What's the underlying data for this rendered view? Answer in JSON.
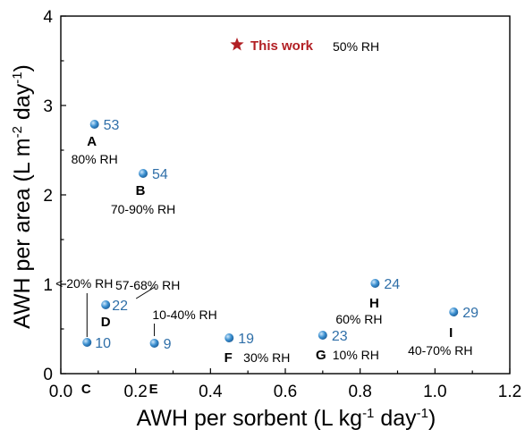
{
  "chart_data": {
    "type": "scatter",
    "xlabel_main": "AWH per sorbent (L kg",
    "xlabel_sup1": "-1",
    "xlabel_mid": " day",
    "xlabel_sup2": "-1",
    "xlabel_end": ")",
    "ylabel_main": "AWH per area (L m",
    "ylabel_sup1": "-2",
    "ylabel_mid": " day",
    "ylabel_sup2": "-1",
    "ylabel_end": ")",
    "xlim": [
      0,
      1.2
    ],
    "ylim": [
      0,
      4
    ],
    "x_ticks": [
      "0.0",
      "0.2",
      "0.4",
      "0.6",
      "0.8",
      "1.0",
      "1.2"
    ],
    "y_ticks": [
      "0",
      "1",
      "2",
      "3",
      "4"
    ],
    "marker_color": "#3a8fd0",
    "ref_color": "#2f6fa8",
    "points": [
      {
        "ref": "53",
        "letter": "A",
        "rh": "80% RH",
        "x": 0.09,
        "y": 2.79
      },
      {
        "ref": "54",
        "letter": "B",
        "rh": "70-90% RH",
        "x": 0.22,
        "y": 2.24
      },
      {
        "ref": "10",
        "letter": "C",
        "rh": "< 20% RH",
        "x": 0.07,
        "y": 0.35
      },
      {
        "ref": "22",
        "letter": "D",
        "rh": "57-68% RH",
        "x": 0.12,
        "y": 0.77
      },
      {
        "ref": "9",
        "letter": "E",
        "rh": "10-40% RH",
        "x": 0.25,
        "y": 0.34
      },
      {
        "ref": "19",
        "letter": "F",
        "rh": "30% RH",
        "x": 0.45,
        "y": 0.4
      },
      {
        "ref": "23",
        "letter": "G",
        "rh": "10% RH",
        "x": 0.7,
        "y": 0.43
      },
      {
        "ref": "24",
        "letter": "H",
        "rh": "60% RH",
        "x": 0.84,
        "y": 1.01
      },
      {
        "ref": "29",
        "letter": "I",
        "rh": "40-70% RH",
        "x": 1.05,
        "y": 0.69
      }
    ],
    "this_work": {
      "label": "This work",
      "rh": "50% RH",
      "star_color": "#b21f24"
    }
  }
}
